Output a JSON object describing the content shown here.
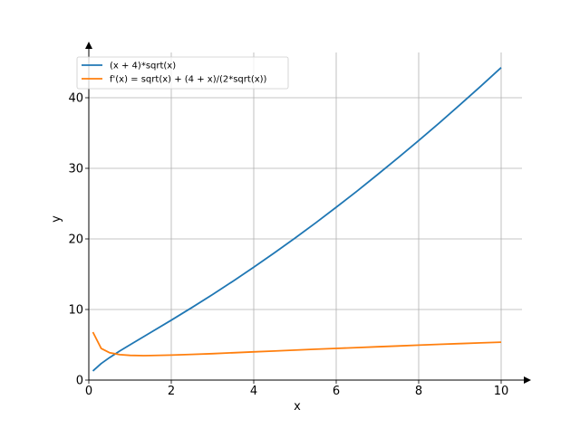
{
  "chart_data": {
    "type": "line",
    "title": "",
    "xlabel": "x",
    "ylabel": "y",
    "xlim": [
      0,
      10.5
    ],
    "ylim": [
      0,
      47
    ],
    "grid": true,
    "legend_position": "top-left",
    "x_ticks": [
      0,
      2,
      4,
      6,
      8,
      10
    ],
    "y_ticks": [
      0,
      10,
      20,
      30,
      40
    ],
    "series": [
      {
        "name": "(x + 4)*sqrt(x)",
        "color": "#1f77b4",
        "x": [
          0.1,
          0.3,
          0.5,
          0.75,
          1,
          1.5,
          2,
          2.5,
          3,
          3.5,
          4,
          4.5,
          5,
          5.5,
          6,
          6.5,
          7,
          7.5,
          8,
          8.5,
          9,
          9.5,
          10
        ],
        "y": [
          1.3,
          2.35,
          3.18,
          4.11,
          5.0,
          6.74,
          8.49,
          10.28,
          12.12,
          14.03,
          16.0,
          18.03,
          20.12,
          22.27,
          24.49,
          26.76,
          29.1,
          31.5,
          33.94,
          36.44,
          39.0,
          41.61,
          44.27
        ]
      },
      {
        "name": "f'(x) = sqrt(x) + (4 + x)/(2*sqrt(x))",
        "color": "#ff7f0e",
        "x": [
          0.1,
          0.3,
          0.5,
          0.75,
          1,
          1.33,
          1.5,
          2,
          2.5,
          3,
          3.5,
          4,
          4.5,
          5,
          5.5,
          6,
          6.5,
          7,
          7.5,
          8,
          8.5,
          9,
          9.5,
          10
        ],
        "y": [
          6.8,
          4.47,
          3.89,
          3.6,
          3.5,
          3.46,
          3.47,
          3.54,
          3.64,
          3.75,
          3.87,
          4.0,
          4.12,
          4.25,
          4.37,
          4.49,
          4.6,
          4.72,
          4.83,
          4.95,
          5.06,
          5.17,
          5.27,
          5.37
        ]
      }
    ]
  }
}
